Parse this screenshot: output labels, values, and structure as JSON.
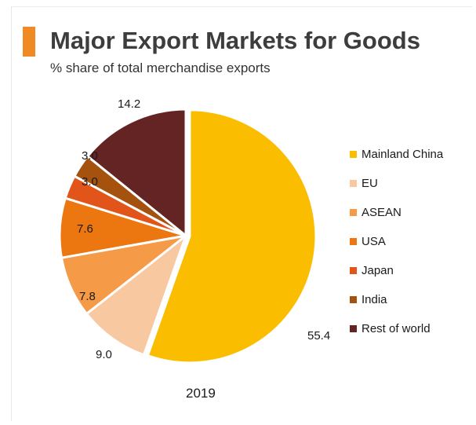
{
  "header": {
    "title": "Major Export Markets for Goods",
    "subtitle": "% share of total merchandise exports"
  },
  "chart_data": {
    "type": "pie",
    "title": "Major Export Markets for Goods",
    "subtitle": "% share of total merchandise exports",
    "categories": [
      "Mainland China",
      "EU",
      "ASEAN",
      "USA",
      "Japan",
      "India",
      "Rest of world"
    ],
    "values": [
      55.4,
      9.0,
      7.8,
      7.6,
      3.0,
      3.0,
      14.2
    ],
    "labels": [
      "55.4",
      "9.0",
      "7.8",
      "7.6",
      "3.0",
      "3.0",
      "14.2"
    ],
    "colors": [
      "#fbbd00",
      "#f8c8a0",
      "#f59a47",
      "#ec760f",
      "#e2551a",
      "#a6520f",
      "#642424"
    ],
    "legend_position": "right",
    "caption": "2019"
  }
}
